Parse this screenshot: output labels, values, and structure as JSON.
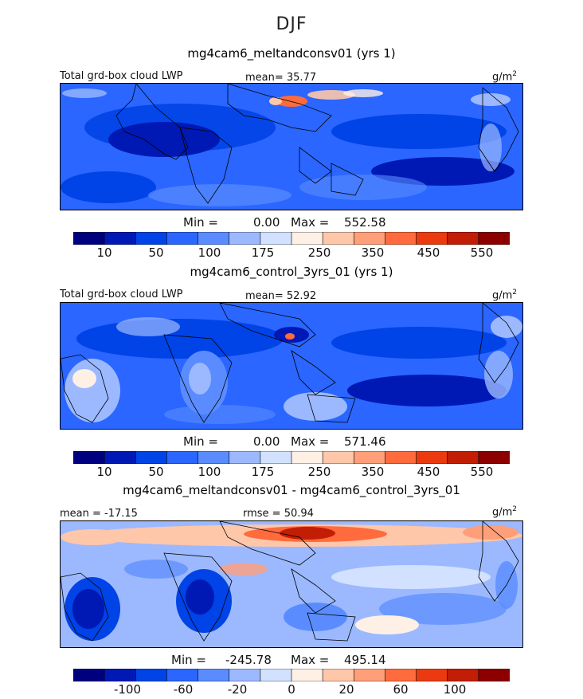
{
  "season": "DJF",
  "colors": [
    "#00007f",
    "#0019b4",
    "#0043e6",
    "#2a66ff",
    "#5a8cff",
    "#9cb9ff",
    "#d1e1ff",
    "#fff0e6",
    "#ffc7aa",
    "#ff9f7a",
    "#ff6b3d",
    "#eb3a10",
    "#c21d05",
    "#8c0000"
  ],
  "panels": [
    {
      "title": "mg4cam6_meltandconsv01 (yrs 1)",
      "left_label": "Total grd-box cloud LWP",
      "center_label": "mean=  35.77",
      "units": "g/m",
      "units_sup": "2",
      "min_label": "Min =",
      "min_value": "0.00",
      "max_label": "Max =",
      "max_value": "552.58",
      "ticks": [
        "10",
        "50",
        "100",
        "175",
        "250",
        "350",
        "450",
        "550"
      ]
    },
    {
      "title": "mg4cam6_control_3yrs_01 (yrs 1)",
      "left_label": "Total grd-box cloud LWP",
      "center_label": "mean=  52.92",
      "units": "g/m",
      "units_sup": "2",
      "min_label": "Min =",
      "min_value": "0.00",
      "max_label": "Max =",
      "max_value": "571.46",
      "ticks": [
        "10",
        "50",
        "100",
        "175",
        "250",
        "350",
        "450",
        "550"
      ]
    },
    {
      "title": "mg4cam6_meltandconsv01 - mg4cam6_control_3yrs_01",
      "left_label": "mean = -17.15",
      "center_label": "rmse =  50.94",
      "units": "g/m",
      "units_sup": "2",
      "min_label": "Min =",
      "min_value": "-245.78",
      "max_label": "Max =",
      "max_value": "495.14",
      "ticks": [
        "-100",
        "-60",
        "-20",
        "0",
        "20",
        "60",
        "100"
      ]
    }
  ],
  "chart_data": [
    {
      "type": "heatmap",
      "title": "mg4cam6_meltandconsv01 (yrs 1)",
      "field": "Total grd-box cloud LWP",
      "units": "g/m2",
      "mean": 35.77,
      "min": 0.0,
      "max": 552.58,
      "contour_levels": [
        10,
        30,
        50,
        75,
        100,
        140,
        175,
        210,
        250,
        300,
        350,
        400,
        450,
        500,
        550
      ]
    },
    {
      "type": "heatmap",
      "title": "mg4cam6_control_3yrs_01 (yrs 1)",
      "field": "Total grd-box cloud LWP",
      "units": "g/m2",
      "mean": 52.92,
      "min": 0.0,
      "max": 571.46,
      "contour_levels": [
        10,
        30,
        50,
        75,
        100,
        140,
        175,
        210,
        250,
        300,
        350,
        400,
        450,
        500,
        550
      ]
    },
    {
      "type": "heatmap",
      "title": "mg4cam6_meltandconsv01 - mg4cam6_control_3yrs_01",
      "units": "g/m2",
      "mean": -17.15,
      "rmse": 50.94,
      "min": -245.78,
      "max": 495.14,
      "contour_levels": [
        -120,
        -100,
        -80,
        -60,
        -40,
        -20,
        -10,
        0,
        10,
        20,
        40,
        60,
        80,
        100,
        120
      ]
    }
  ]
}
